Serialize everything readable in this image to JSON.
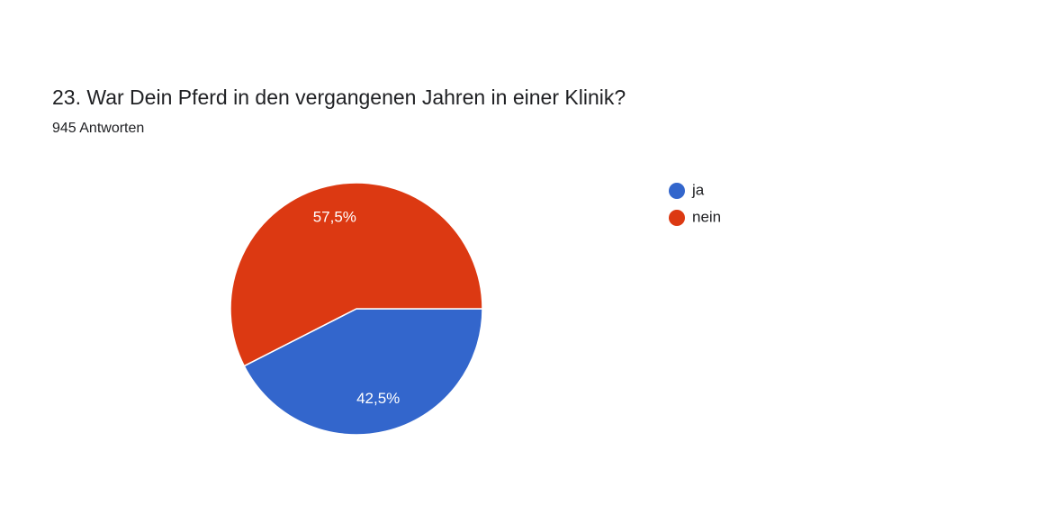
{
  "chart_data": {
    "type": "pie",
    "title": "23. War Dein Pferd in den vergangenen Jahren in einer Klinik?",
    "subtitle": "945 Antworten",
    "categories": [
      "ja",
      "nein"
    ],
    "values": [
      42.5,
      57.5
    ],
    "value_labels": [
      "42,5%",
      "57,5%"
    ],
    "colors": [
      "#3366cc",
      "#dc3912"
    ],
    "legend": "right"
  }
}
